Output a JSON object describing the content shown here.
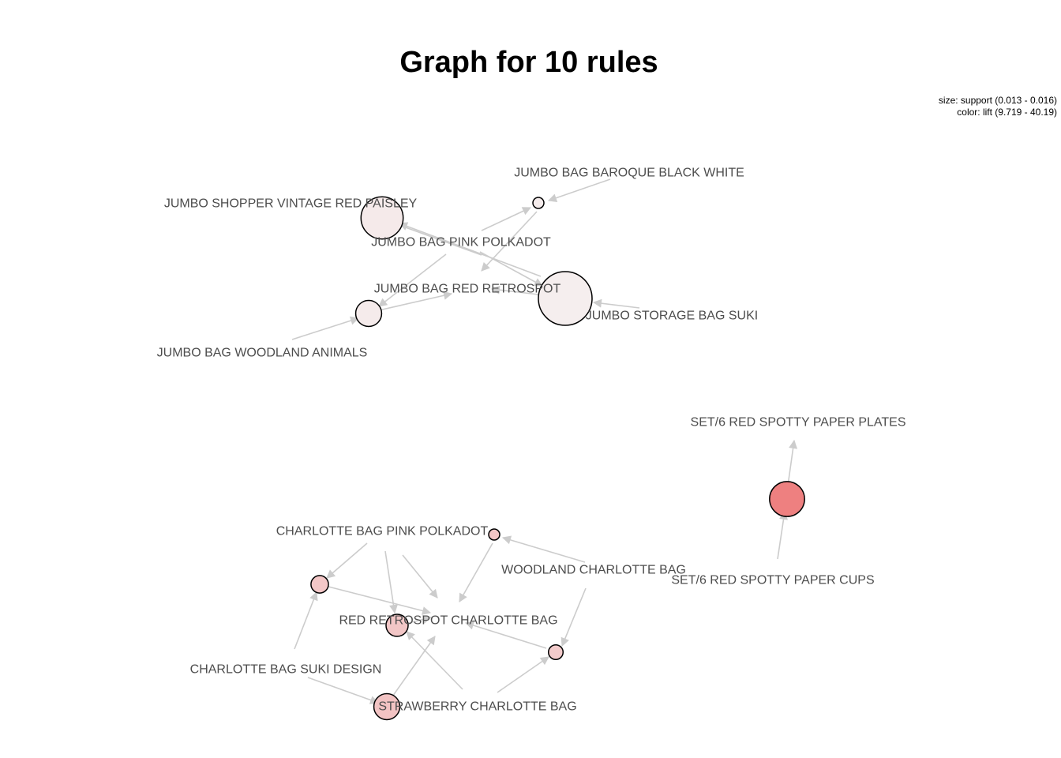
{
  "title": "Graph for 10 rules",
  "legend": {
    "size_text": "size: support (0.013 - 0.016)",
    "color_text": "color: lift (9.719 - 40.19)"
  },
  "colors": {
    "edge": "#cccccc",
    "label": "#4d4d4d",
    "node_stroke": "#000000",
    "lift_low": "#f5eeee",
    "lift_high": "#ee8080"
  },
  "items": [
    "JUMBO  BAG BAROQUE BLACK WHITE",
    "JUMBO SHOPPER VINTAGE RED PAISLEY",
    "JUMBO BAG PINK POLKADOT",
    "JUMBO BAG RED RETROSPOT",
    "JUMBO STORAGE BAG SUKI",
    "JUMBO BAG WOODLAND ANIMALS",
    "SET/6 RED SPOTTY PAPER PLATES",
    "SET/6 RED SPOTTY PAPER CUPS",
    "CHARLOTTE BAG PINK POLKADOT",
    "WOODLAND CHARLOTTE BAG",
    "RED RETROSPOT CHARLOTTE BAG",
    "CHARLOTTE BAG SUKI DESIGN",
    "STRAWBERRY CHARLOTTE BAG"
  ],
  "rules": [
    {
      "lhs": [
        "JUMBO  BAG BAROQUE BLACK WHITE",
        "JUMBO BAG PINK POLKADOT"
      ],
      "rhs": "JUMBO BAG RED RETROSPOT",
      "support": 0.013,
      "lift": 10.2
    },
    {
      "lhs": [
        "JUMBO BAG PINK POLKADOT",
        "JUMBO STORAGE BAG SUKI"
      ],
      "rhs": "JUMBO SHOPPER VINTAGE RED PAISLEY",
      "support": 0.0148,
      "lift": 10.8
    },
    {
      "lhs": [
        "JUMBO BAG PINK POLKADOT",
        "JUMBO BAG WOODLAND ANIMALS"
      ],
      "rhs": "JUMBO BAG RED RETROSPOT",
      "support": 0.0136,
      "lift": 10.5
    },
    {
      "lhs": [
        "JUMBO BAG PINK POLKADOT",
        "JUMBO STORAGE BAG SUKI"
      ],
      "rhs": "JUMBO BAG RED RETROSPOT",
      "support": 0.016,
      "lift": 9.719
    },
    {
      "lhs": [
        "SET/6 RED SPOTTY PAPER CUPS"
      ],
      "rhs": "SET/6 RED SPOTTY PAPER PLATES",
      "support": 0.0142,
      "lift": 40.19
    },
    {
      "lhs": [
        "CHARLOTTE BAG PINK POLKADOT",
        "WOODLAND CHARLOTTE BAG"
      ],
      "rhs": "RED RETROSPOT CHARLOTTE BAG",
      "support": 0.013,
      "lift": 21.0
    },
    {
      "lhs": [
        "CHARLOTTE BAG PINK POLKADOT",
        "CHARLOTTE BAG SUKI DESIGN"
      ],
      "rhs": "RED RETROSPOT CHARLOTTE BAG",
      "support": 0.0132,
      "lift": 20.5
    },
    {
      "lhs": [
        "CHARLOTTE BAG PINK POLKADOT",
        "STRAWBERRY CHARLOTTE BAG"
      ],
      "rhs": "RED RETROSPOT CHARLOTTE BAG",
      "support": 0.0134,
      "lift": 20.8
    },
    {
      "lhs": [
        "WOODLAND CHARLOTTE BAG",
        "STRAWBERRY CHARLOTTE BAG"
      ],
      "rhs": "RED RETROSPOT CHARLOTTE BAG",
      "support": 0.0131,
      "lift": 19.5
    },
    {
      "lhs": [
        "CHARLOTTE BAG SUKI DESIGN",
        "STRAWBERRY CHARLOTTE BAG"
      ],
      "rhs": "RED RETROSPOT CHARLOTTE BAG",
      "support": 0.0136,
      "lift": 21.5
    }
  ]
}
